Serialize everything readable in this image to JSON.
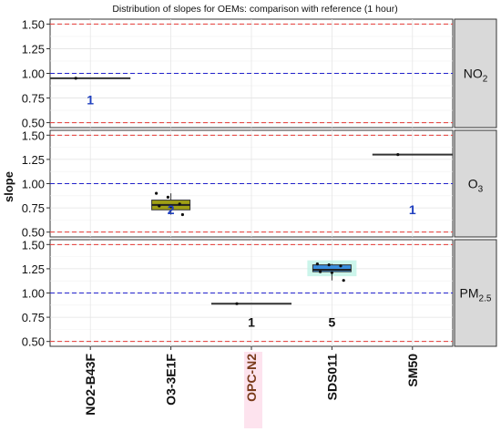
{
  "chart_data": {
    "type": "boxplot",
    "title": "Distribution of slopes for OEMs: comparison with reference (1 hour)",
    "ylabel": "slope",
    "xlabel": "",
    "categories": [
      "NO2-B43F",
      "O3-3E1F",
      "OPC-N2",
      "SDS011",
      "SM50"
    ],
    "highlighted_category": "OPC-N2",
    "y_ticks": [
      "0.50",
      "0.75",
      "1.00",
      "1.25",
      "1.50"
    ],
    "ylim": [
      0.45,
      1.55
    ],
    "reference_lines": [
      {
        "value": 1.0,
        "style": "dashed",
        "color": "#2222cc"
      },
      {
        "value": 0.5,
        "style": "dashed",
        "color": "#e53935"
      },
      {
        "value": 1.5,
        "style": "dashed",
        "color": "#e53935"
      }
    ],
    "grid": true,
    "panels": [
      {
        "strip_main": "NO",
        "strip_sub": "2",
        "sub_type": "subscript",
        "boxes": [
          {
            "category": "NO2-B43F",
            "min": 0.95,
            "q1": 0.95,
            "median": 0.95,
            "q3": 0.95,
            "max": 0.95,
            "fill": "#222222",
            "points": [
              0.95
            ],
            "n_label": "1",
            "n_label_y": 0.73,
            "n_label_color": "#1f3fbf"
          }
        ]
      },
      {
        "strip_main": "O",
        "strip_sub": "3",
        "sub_type": "subscript",
        "boxes": [
          {
            "category": "O3-3E1F",
            "min": 0.68,
            "q1": 0.73,
            "median": 0.78,
            "q3": 0.83,
            "max": 0.9,
            "fill": "#a0a015",
            "points": [
              0.9,
              0.86,
              0.79,
              0.77,
              0.76,
              0.68
            ],
            "n_label": "2",
            "n_label_y": 0.73,
            "n_label_color": "#1f3fbf"
          },
          {
            "category": "SM50",
            "min": 1.3,
            "q1": 1.3,
            "median": 1.3,
            "q3": 1.3,
            "max": 1.3,
            "fill": "#222222",
            "points": [
              1.3
            ],
            "n_label": "1",
            "n_label_y": 0.73,
            "n_label_color": "#1f3fbf"
          }
        ]
      },
      {
        "strip_main": "PM",
        "strip_sub": "2.5",
        "sub_type": "subscript",
        "boxes": [
          {
            "category": "OPC-N2",
            "min": 0.89,
            "q1": 0.89,
            "median": 0.89,
            "q3": 0.89,
            "max": 0.89,
            "fill": "#222222",
            "points": [
              0.89
            ],
            "n_label": "1",
            "n_label_y": 0.7,
            "n_label_color": "#111111"
          },
          {
            "category": "SDS011",
            "min": 1.13,
            "q1": 1.22,
            "median": 1.24,
            "q3": 1.29,
            "max": 1.3,
            "fill": "#3a8fe0",
            "points": [
              1.3,
              1.29,
              1.28,
              1.22,
              1.21,
              1.13
            ],
            "n_label": "5",
            "n_label_y": 0.7,
            "n_label_color": "#111111"
          }
        ]
      }
    ]
  }
}
